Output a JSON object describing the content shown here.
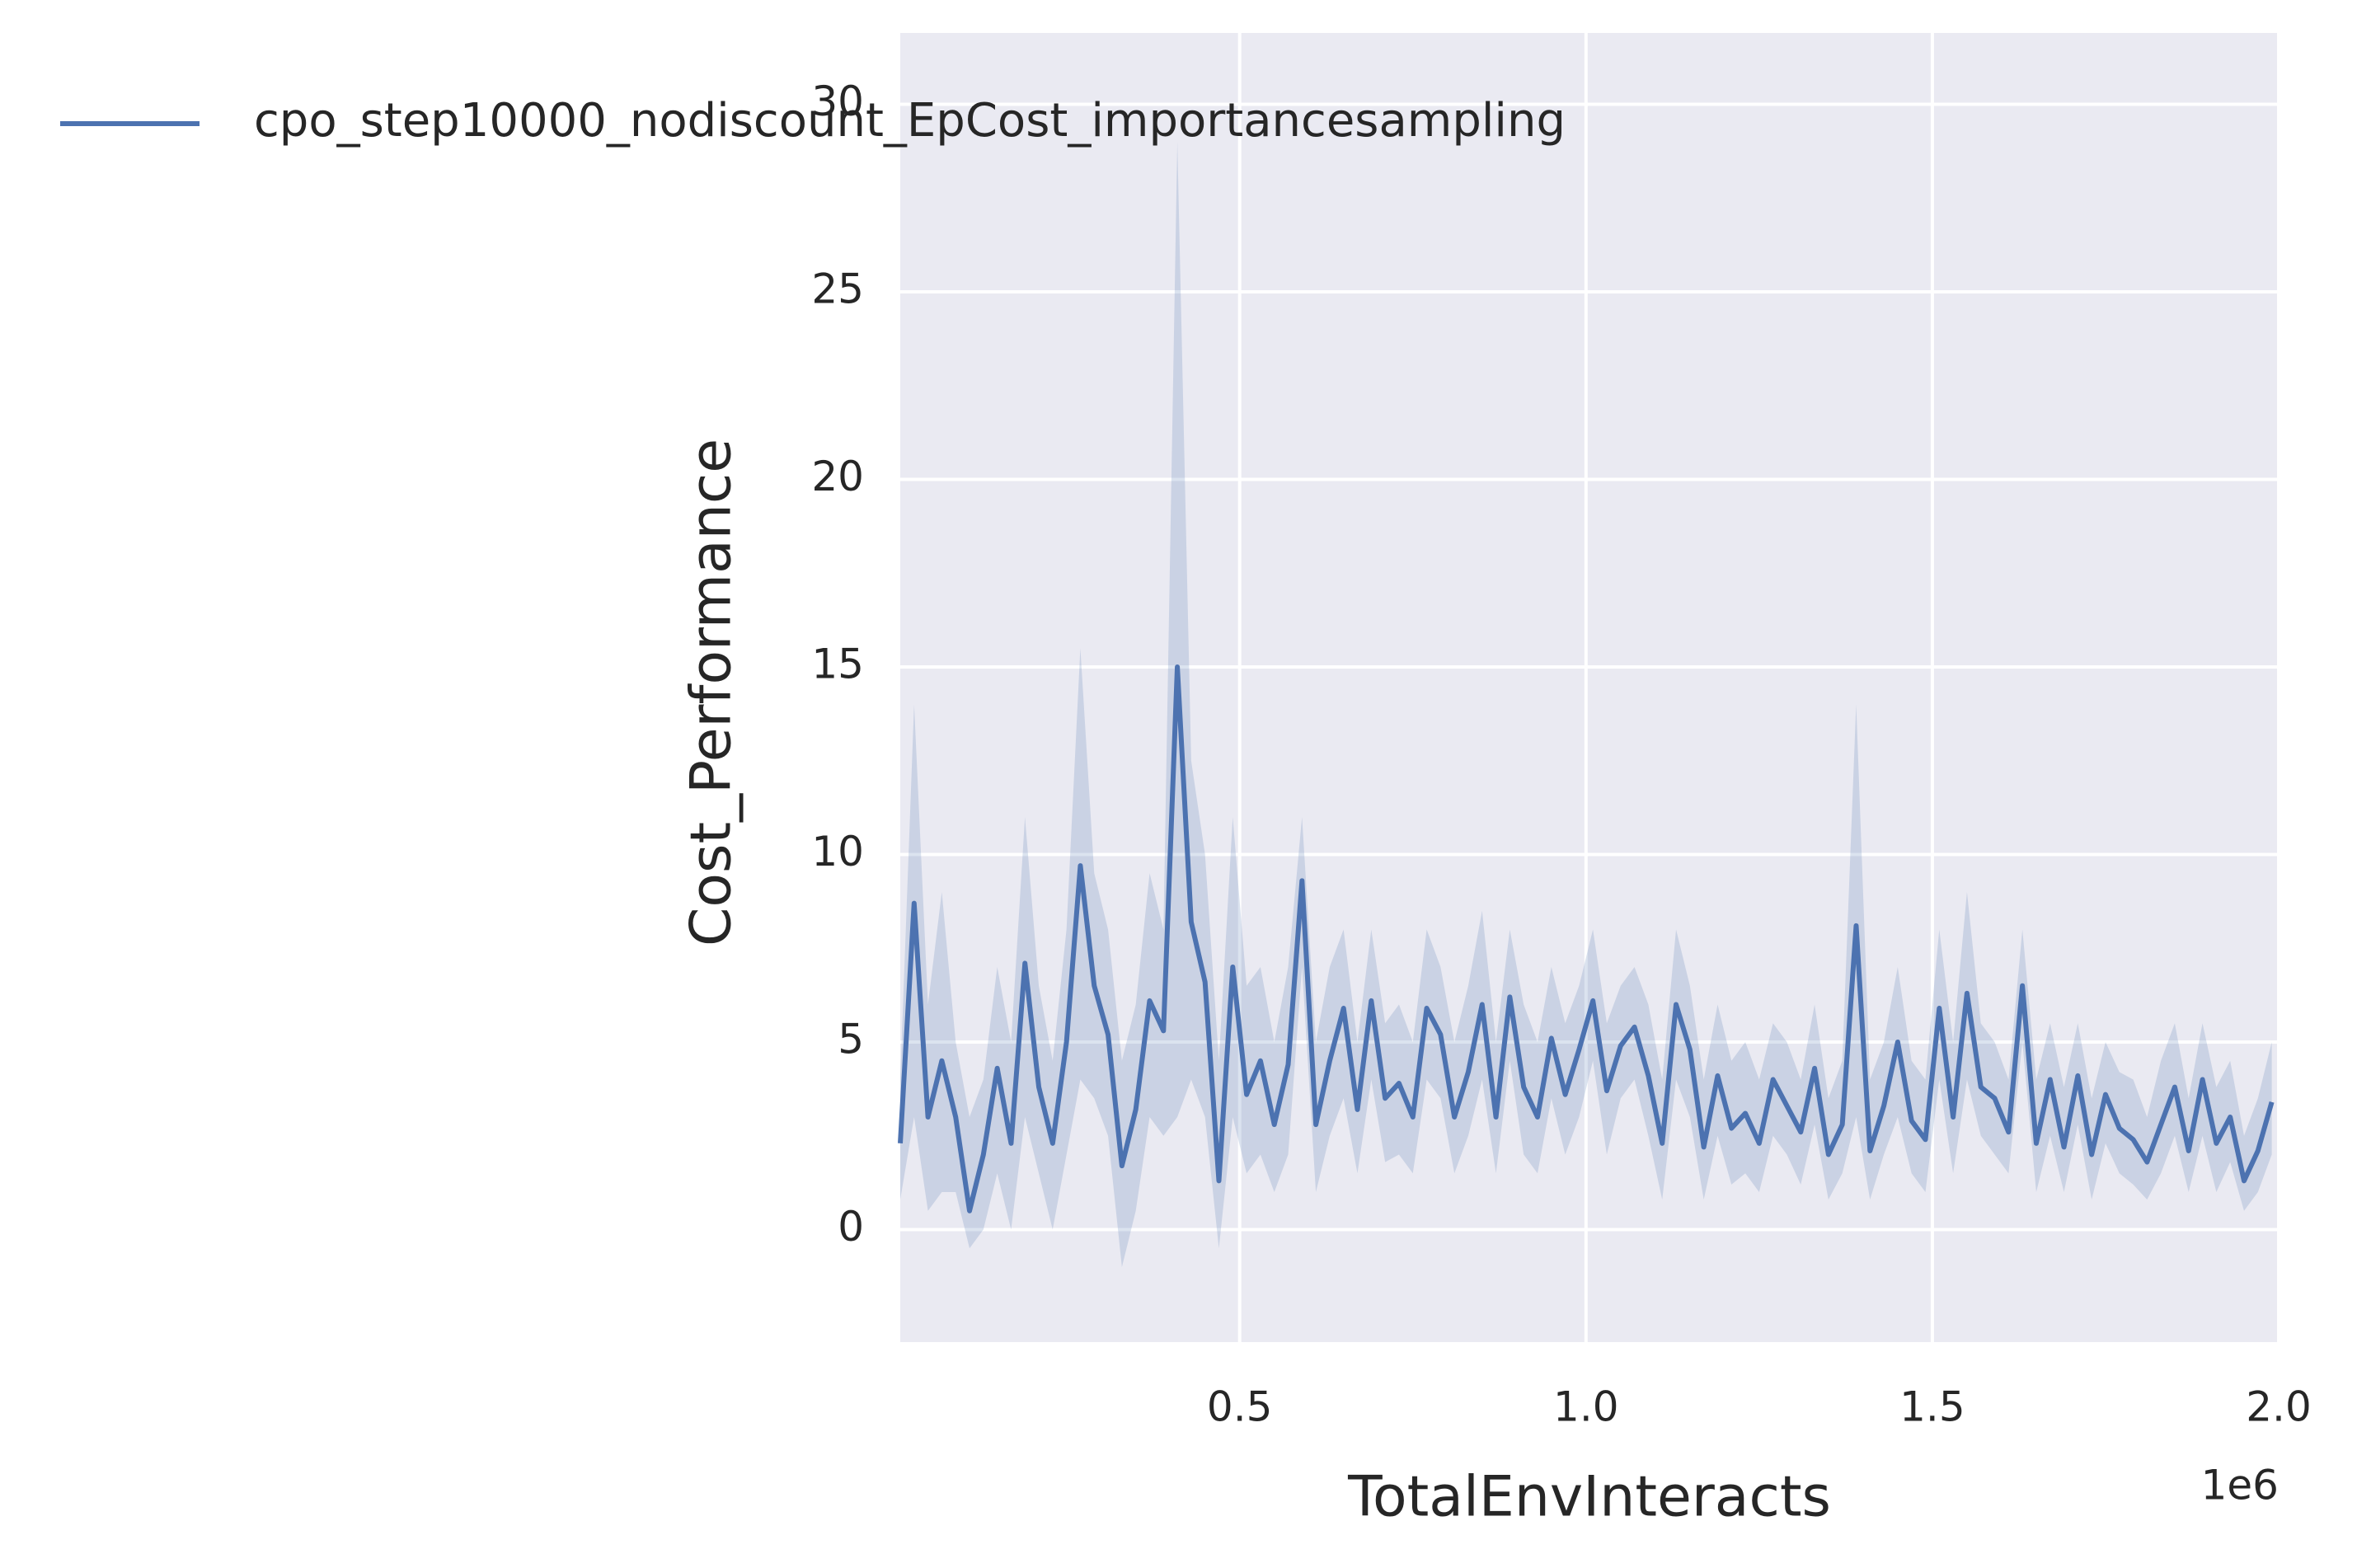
{
  "chart_data": {
    "type": "line",
    "xlabel": "TotalEnvInteracts",
    "ylabel": "Cost_Performance",
    "x_offset_label": "1e6",
    "x": [
      10000,
      30000,
      50000,
      70000,
      90000,
      110000,
      130000,
      150000,
      170000,
      190000,
      210000,
      230000,
      250000,
      270000,
      290000,
      310000,
      330000,
      350000,
      370000,
      390000,
      410000,
      430000,
      450000,
      470000,
      490000,
      510000,
      530000,
      550000,
      570000,
      590000,
      610000,
      630000,
      650000,
      670000,
      690000,
      710000,
      730000,
      750000,
      770000,
      790000,
      810000,
      830000,
      850000,
      870000,
      890000,
      910000,
      930000,
      950000,
      970000,
      990000,
      1010000,
      1030000,
      1050000,
      1070000,
      1090000,
      1110000,
      1130000,
      1150000,
      1170000,
      1190000,
      1210000,
      1230000,
      1250000,
      1270000,
      1290000,
      1310000,
      1330000,
      1350000,
      1370000,
      1390000,
      1410000,
      1430000,
      1450000,
      1470000,
      1490000,
      1510000,
      1530000,
      1550000,
      1570000,
      1590000,
      1610000,
      1630000,
      1650000,
      1670000,
      1690000,
      1710000,
      1730000,
      1750000,
      1770000,
      1790000,
      1810000,
      1830000,
      1850000,
      1870000,
      1890000,
      1910000,
      1930000,
      1950000,
      1970000,
      1990000
    ],
    "series": [
      {
        "name": "cpo_step10000_nodiscount_EpCost_importancesampling",
        "color": "#4c72b0",
        "values": [
          2.3,
          8.7,
          3.0,
          4.5,
          3.0,
          0.5,
          2.0,
          4.3,
          2.3,
          7.1,
          3.8,
          2.3,
          5.0,
          9.7,
          6.5,
          5.2,
          1.7,
          3.2,
          6.1,
          5.3,
          15.0,
          8.2,
          6.6,
          1.3,
          7.0,
          3.6,
          4.5,
          2.8,
          4.4,
          9.3,
          2.8,
          4.5,
          5.9,
          3.2,
          6.1,
          3.5,
          3.9,
          3.0,
          5.9,
          5.2,
          3.0,
          4.2,
          6.0,
          3.0,
          6.2,
          3.8,
          3.0,
          5.1,
          3.6,
          4.8,
          6.1,
          3.7,
          4.9,
          5.4,
          4.1,
          2.3,
          6.0,
          4.8,
          2.2,
          4.1,
          2.7,
          3.1,
          2.3,
          4.0,
          3.3,
          2.6,
          4.3,
          2.0,
          2.8,
          8.1,
          2.1,
          3.3,
          5.0,
          2.9,
          2.4,
          5.9,
          3.0,
          6.3,
          3.8,
          3.5,
          2.6,
          6.5,
          2.3,
          4.0,
          2.2,
          4.1,
          2.0,
          3.6,
          2.7,
          2.4,
          1.8,
          2.8,
          3.8,
          2.1,
          4.0,
          2.3,
          3.0,
          1.3,
          2.1,
          3.4
        ],
        "upper": [
          4.0,
          14.0,
          6.0,
          9.0,
          5.0,
          3.0,
          4.0,
          7.0,
          5.0,
          11.0,
          6.5,
          4.5,
          8.0,
          15.5,
          9.5,
          8.0,
          4.5,
          6.0,
          9.5,
          8.0,
          29.0,
          12.5,
          10.0,
          4.5,
          11.0,
          6.5,
          7.0,
          5.0,
          7.0,
          11.0,
          5.0,
          7.0,
          8.0,
          5.0,
          8.0,
          5.5,
          6.0,
          5.0,
          8.0,
          7.0,
          5.0,
          6.5,
          8.5,
          5.0,
          8.0,
          6.0,
          5.0,
          7.0,
          5.5,
          6.5,
          8.0,
          5.5,
          6.5,
          7.0,
          6.0,
          4.0,
          8.0,
          6.5,
          4.0,
          6.0,
          4.5,
          5.0,
          4.0,
          5.5,
          5.0,
          4.0,
          6.0,
          3.5,
          4.5,
          14.0,
          4.0,
          5.0,
          7.0,
          4.5,
          4.0,
          8.0,
          5.0,
          9.0,
          5.5,
          5.0,
          4.0,
          8.0,
          4.0,
          5.5,
          3.8,
          5.5,
          3.5,
          5.0,
          4.2,
          4.0,
          3.0,
          4.5,
          5.5,
          3.5,
          5.5,
          3.8,
          4.5,
          2.5,
          3.5,
          5.0
        ],
        "lower": [
          0.8,
          3.0,
          0.5,
          1.0,
          1.0,
          -0.5,
          0,
          1.5,
          0,
          3.0,
          1.5,
          0,
          2.0,
          4.0,
          3.5,
          2.5,
          -1.0,
          0.5,
          3.0,
          2.5,
          3.0,
          4.0,
          3.0,
          -0.5,
          3.0,
          1.5,
          2.0,
          1.0,
          2.0,
          7.0,
          1.0,
          2.5,
          3.5,
          1.5,
          4.0,
          1.8,
          2.0,
          1.5,
          4.0,
          3.5,
          1.5,
          2.5,
          4.0,
          1.5,
          4.5,
          2.0,
          1.5,
          3.5,
          2.0,
          3.0,
          4.5,
          2.0,
          3.5,
          4.0,
          2.5,
          0.8,
          4.0,
          3.0,
          0.8,
          2.5,
          1.2,
          1.5,
          1.0,
          2.5,
          2.0,
          1.2,
          2.8,
          0.8,
          1.5,
          3.0,
          0.8,
          2.0,
          3.0,
          1.5,
          1.0,
          4.0,
          1.5,
          4.0,
          2.5,
          2.0,
          1.5,
          5.0,
          1.0,
          2.5,
          1.0,
          2.8,
          0.8,
          2.3,
          1.5,
          1.2,
          0.8,
          1.5,
          2.5,
          1.0,
          2.5,
          1.0,
          1.8,
          0.5,
          1.0,
          2.0
        ]
      }
    ],
    "xlim": [
      10000,
      2000000
    ],
    "ylim": [
      -3.0,
      31.9
    ],
    "xticks": [
      {
        "value": 500000,
        "label": "0.5"
      },
      {
        "value": 1000000,
        "label": "1.0"
      },
      {
        "value": 1500000,
        "label": "1.5"
      },
      {
        "value": 2000000,
        "label": "2.0"
      }
    ],
    "yticks": [
      0,
      5,
      10,
      15,
      20,
      25,
      30
    ],
    "grid": true,
    "background": "#eaeaf2"
  }
}
